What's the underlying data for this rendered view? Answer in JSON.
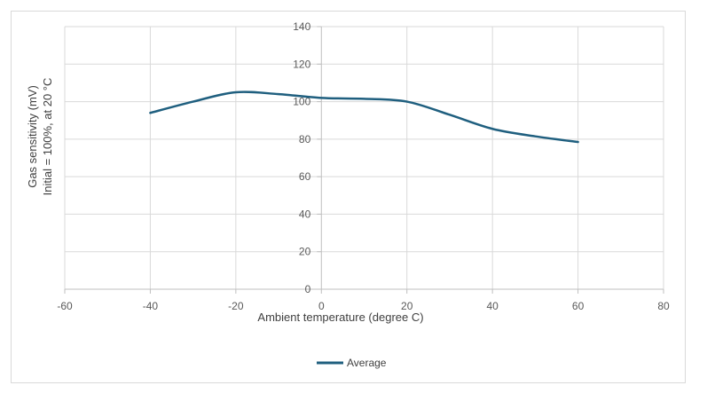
{
  "chart_data": {
    "type": "line",
    "xlabel": "Ambient temperature (degree C)",
    "ylabel_lines": [
      "Gas sensitivity (mV)",
      "Initial = 100%, at 20 °C"
    ],
    "xlim": [
      -60,
      80
    ],
    "ylim": [
      0,
      140
    ],
    "x_ticks": [
      -60,
      -40,
      -20,
      0,
      20,
      40,
      60,
      80
    ],
    "y_ticks": [
      0,
      20,
      40,
      60,
      80,
      100,
      120,
      140
    ],
    "grid": true,
    "legend_position": "bottom",
    "series": [
      {
        "name": "Average",
        "color": "#1f5f7f",
        "points": [
          {
            "x": -40,
            "y": 94
          },
          {
            "x": -30,
            "y": 100
          },
          {
            "x": -20,
            "y": 105
          },
          {
            "x": -10,
            "y": 104
          },
          {
            "x": 0,
            "y": 102
          },
          {
            "x": 10,
            "y": 101.5
          },
          {
            "x": 20,
            "y": 100
          },
          {
            "x": 30,
            "y": 93
          },
          {
            "x": 40,
            "y": 85.5
          },
          {
            "x": 50,
            "y": 81.5
          },
          {
            "x": 60,
            "y": 78.5
          }
        ]
      }
    ]
  }
}
